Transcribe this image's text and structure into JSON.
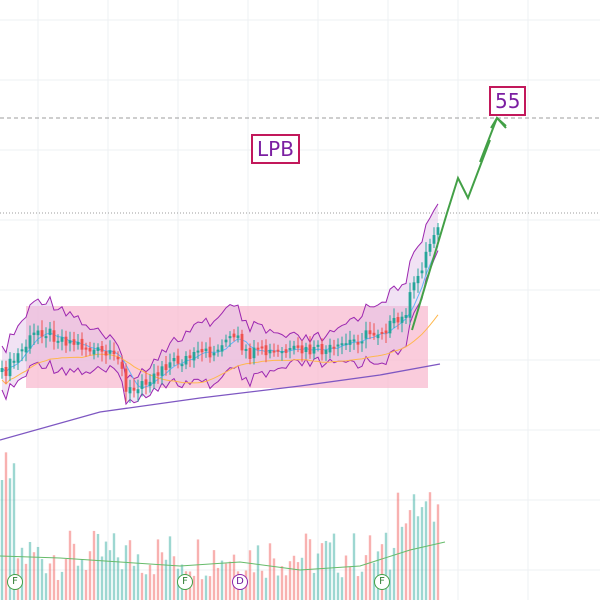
{
  "chart_data": {
    "type": "candlestick",
    "ticker_label": "LPB",
    "target_label": "55",
    "colors": {
      "up": "#26a69a",
      "down": "#ef5350",
      "bb_line": "#9c27b0",
      "bb_fill": "#e1bee7",
      "base_box": "#f8bbd0",
      "ma_short": "#64b5f6",
      "ma_mid": "#ffb74d",
      "ma_long": "#7e57c2",
      "volume_ma": "#66bb6a",
      "projection": "#43a047",
      "grid": "#eef0f3",
      "level_line": "#9e9e9e"
    },
    "events": [
      {
        "type": "F"
      },
      {
        "type": "F"
      },
      {
        "type": "D"
      },
      {
        "type": "F"
      }
    ]
  }
}
